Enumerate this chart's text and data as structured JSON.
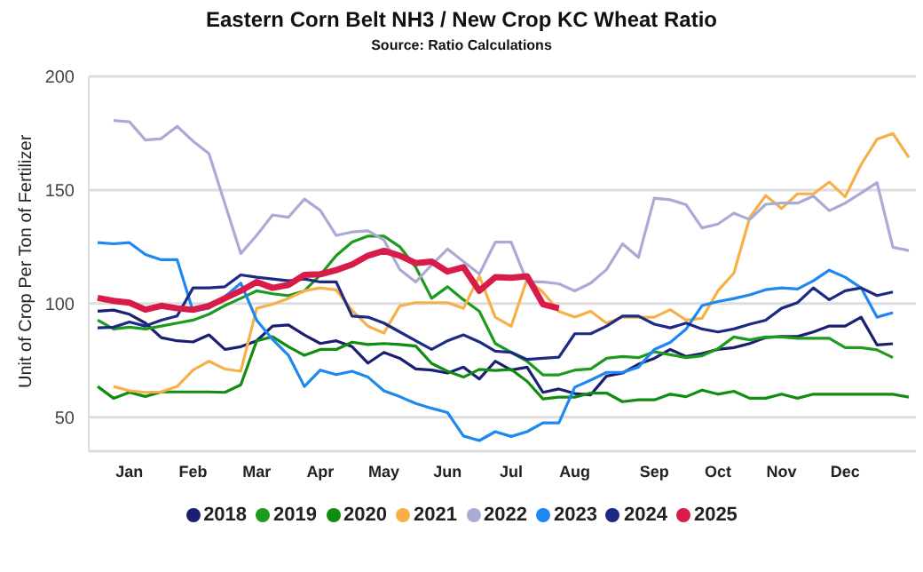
{
  "chart_data": {
    "type": "line",
    "title": "Eastern Corn Belt NH3 / New Crop KC Wheat Ratio",
    "subtitle": "Source: Ratio Calculations",
    "ylabel": "Unit of Crop Per Ton of Fertilizer",
    "categories": [
      null,
      null,
      "Jan",
      null,
      null,
      null,
      "Feb",
      null,
      null,
      null,
      "Mar",
      null,
      null,
      null,
      "Apr",
      null,
      null,
      null,
      "May",
      null,
      null,
      null,
      "Jun",
      null,
      null,
      null,
      "Jul",
      null,
      null,
      null,
      "Aug",
      null,
      null,
      null,
      null,
      "Sep",
      null,
      null,
      null,
      "Oct",
      null,
      null,
      null,
      "Nov",
      null,
      null,
      null,
      "Dec",
      null,
      null,
      null,
      null
    ],
    "ylim": [
      35,
      200
    ],
    "yticks": [
      50,
      100,
      150,
      200
    ],
    "grid": "y",
    "legend": "bottom",
    "marker": "none",
    "line_style": "solid",
    "series": [
      {
        "name": "2018",
        "color": "#1a1f71",
        "values": [
          96.6,
          97.1,
          95.3,
          91.4,
          85,
          83.6,
          83.1,
          86.2,
          79.8,
          81,
          83.6,
          90.1,
          90.6,
          86.2,
          82.4,
          83.6,
          81,
          73.8,
          78.5,
          75.9,
          71.2,
          70.7,
          69.4,
          72,
          66.8,
          74.6,
          70.7,
          72,
          60.9,
          62.4,
          60.4,
          59.8,
          68.1,
          69.4,
          73.3,
          75.9,
          79.8,
          76.7,
          78,
          79.8,
          80.6,
          82.4,
          85,
          85.5,
          85.5,
          87.5,
          90.1,
          90.1,
          94,
          81.8,
          82.3,
          null
        ]
      },
      {
        "name": "2019",
        "color": "#1e9a1e",
        "values": [
          92.7,
          88.8,
          89.6,
          88.8,
          90.1,
          91.4,
          92.7,
          95.3,
          99.1,
          102.3,
          105.6,
          104.3,
          103.5,
          105.6,
          112.6,
          121.1,
          127.1,
          129.7,
          129.7,
          125,
          116,
          102.3,
          107.4,
          101.7,
          96.6,
          82.4,
          78.5,
          74.6,
          68.6,
          68.6,
          70.7,
          71.2,
          75.9,
          76.7,
          76.2,
          78.8,
          77.5,
          76.2,
          77,
          80.1,
          85.3,
          84,
          85.3,
          85.3,
          84.7,
          84.7,
          84.7,
          80.6,
          80.6,
          79.6,
          76.2,
          null
        ]
      },
      {
        "name": "2020",
        "color": "#108c10",
        "values": [
          63.5,
          58.3,
          60.9,
          59.1,
          61.1,
          61.1,
          61.1,
          61.1,
          60.9,
          64.2,
          83.6,
          85.4,
          81,
          77.2,
          79.8,
          79.8,
          83,
          82,
          82.4,
          82,
          81.3,
          73.6,
          70.2,
          67.6,
          71,
          70.5,
          71,
          65.8,
          58,
          58.8,
          58.8,
          60.6,
          60.6,
          56.8,
          57.6,
          57.6,
          60.1,
          59,
          61.9,
          60.1,
          61.4,
          58.3,
          58.3,
          60.1,
          58.3,
          60.1,
          60.1,
          60.1,
          60.1,
          60.1,
          60.1,
          58.8
        ]
      },
      {
        "name": "2021",
        "color": "#f7b047",
        "values": [
          null,
          63.5,
          61.6,
          60.9,
          61.1,
          63.5,
          70.7,
          74.6,
          71.2,
          70.2,
          97.9,
          99.7,
          102.3,
          105.6,
          106.9,
          106,
          97,
          90,
          87,
          99,
          100.4,
          100.4,
          100.4,
          97.9,
          112,
          94,
          90,
          110.8,
          105,
          96.6,
          94,
          96.6,
          91.4,
          94,
          94,
          94,
          97.3,
          92.7,
          93.5,
          105.6,
          113.4,
          137.9,
          147.5,
          141.8,
          148.3,
          148.3,
          153.5,
          147,
          161.2,
          172.3,
          174.9,
          164.3
        ]
      },
      {
        "name": "2022",
        "color": "#a9abd6",
        "values": [
          null,
          180.6,
          180,
          172,
          172.6,
          178,
          171.5,
          166,
          144,
          122,
          130,
          139,
          138,
          146,
          141,
          130,
          131.5,
          132,
          128,
          115,
          109.5,
          117,
          124,
          118.5,
          113,
          127,
          127,
          109.5,
          109.5,
          108.7,
          105.6,
          109,
          115,
          126.3,
          120.3,
          146.4,
          145.7,
          143.5,
          133.3,
          135,
          139.8,
          137,
          143.7,
          144.2,
          144.2,
          147.3,
          140.9,
          144.2,
          148.6,
          153.2,
          124.8,
          123.3
        ]
      },
      {
        "name": "2023",
        "color": "#1e88f0",
        "values": [
          126.8,
          126.3,
          126.8,
          121.6,
          119.3,
          119.3,
          96.6,
          98,
          103,
          109,
          92.7,
          84.2,
          77.2,
          63.5,
          70.7,
          68.7,
          70.2,
          67.6,
          61.6,
          59,
          56,
          53.9,
          52,
          41.7,
          39.7,
          43.6,
          41.5,
          43.6,
          47.5,
          47.5,
          63.2,
          66.3,
          69.7,
          69.7,
          72,
          79.8,
          82.9,
          88.8,
          99.1,
          100.9,
          102.2,
          103.8,
          106.1,
          106.9,
          106.4,
          110,
          114.7,
          111.6,
          106.9,
          94,
          96,
          null
        ]
      },
      {
        "name": "2024",
        "color": "#1c2a85",
        "values": [
          89.3,
          89.6,
          91.9,
          90.1,
          92.7,
          94.5,
          106.9,
          106.9,
          107.4,
          112.6,
          111.6,
          110.8,
          110,
          110.8,
          109.5,
          109.5,
          94.5,
          94,
          91.4,
          87.5,
          83.6,
          79.8,
          83.6,
          86.2,
          83.1,
          79,
          78.5,
          75.4,
          75.9,
          76.4,
          86.7,
          86.7,
          90.1,
          94.5,
          94.5,
          90.9,
          89.3,
          91.4,
          88.8,
          87.5,
          88.8,
          90.9,
          92.7,
          97.9,
          100.4,
          106.9,
          101.7,
          105.6,
          106.9,
          103.5,
          105.1,
          null
        ]
      },
      {
        "name": "2025",
        "color": "#d81b48",
        "values": [
          102.5,
          101.2,
          100.4,
          97.3,
          99,
          97.9,
          97.3,
          99,
          102.3,
          105.6,
          109.5,
          106.9,
          108.2,
          112.6,
          112.9,
          114.7,
          117.2,
          121.1,
          123.2,
          121.1,
          117.8,
          118.5,
          114.1,
          116,
          105.6,
          111.6,
          111.3,
          112,
          99.7,
          97.9,
          null,
          null,
          null,
          null,
          null,
          null,
          null,
          null,
          null,
          null,
          null,
          null,
          null,
          null,
          null,
          null,
          null,
          null,
          null,
          null,
          null,
          null
        ]
      }
    ]
  }
}
